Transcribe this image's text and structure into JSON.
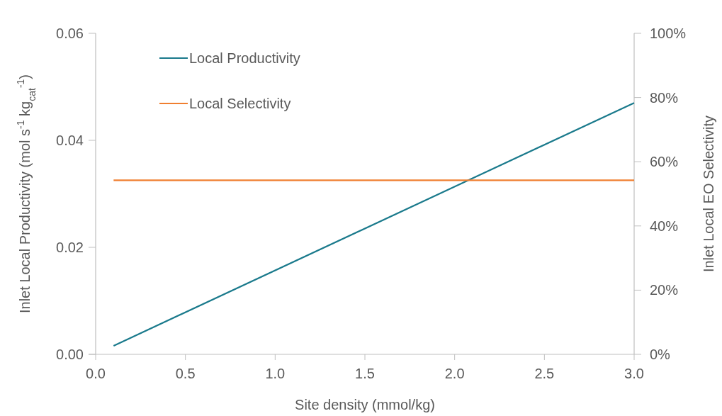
{
  "chart_data": {
    "type": "line",
    "xlabel": "Site density (mmol/kg)",
    "ylabel": "Inlet Local Productivity (mol s$^{-1}$ kg$_{cat}$$^{-1}$)",
    "y2label": "Inlet Local EO Selectivity",
    "x": [
      0.1,
      3.0
    ],
    "series": [
      {
        "name": "Local Productivity",
        "color": "#1a7a8c",
        "values": [
          0.0016,
          0.047
        ]
      },
      {
        "name": "Local Selectivity",
        "color": "#f07f30",
        "values": [
          54.2,
          54.2
        ],
        "axis": "y2"
      }
    ],
    "xlim": [
      0,
      3.0
    ],
    "xticks": [
      {
        "value": 0,
        "label": "0.0"
      },
      0.5,
      {
        "value": 1,
        "label": "1.0"
      },
      1.5,
      {
        "value": 2,
        "label": "2.0"
      },
      2.5,
      {
        "value": 3,
        "label": "3.0"
      }
    ],
    "ylim": [
      0,
      0.06
    ],
    "yticks": [
      {
        "value": 0,
        "label": "0.00"
      },
      0.02,
      0.04,
      0.06
    ],
    "y2lim": [
      0,
      100
    ],
    "y2ticks": [
      {
        "value": 0,
        "label": "0%"
      },
      {
        "value": 20,
        "label": "20%"
      },
      {
        "value": 40,
        "label": "40%"
      },
      {
        "value": 60,
        "label": "60%"
      },
      {
        "value": 80,
        "label": "80%"
      },
      {
        "value": 100,
        "label": "100%"
      }
    ],
    "grid": false,
    "legend": "top left",
    "marker": "none",
    "line_style": "solid"
  }
}
